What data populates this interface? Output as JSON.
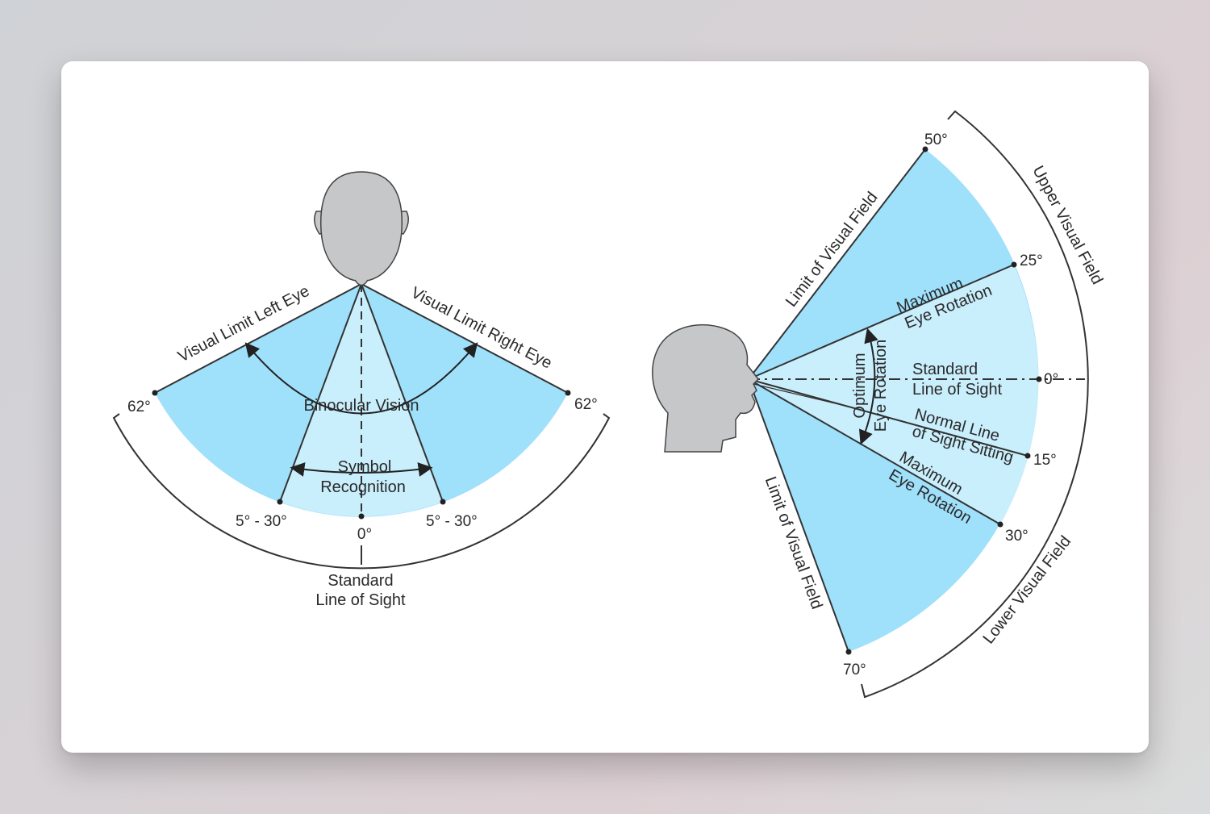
{
  "colors": {
    "field_blue": "#9fe0fb",
    "field_light": "#c9eefc",
    "head_gray": "#c6c7c9",
    "line": "#333333"
  },
  "top_view": {
    "visual_limit_left": "Visual Limit Left Eye",
    "visual_limit_right": "Visual Limit Right Eye",
    "binocular": "Binocular Vision",
    "symbol_1": "Symbol",
    "symbol_2": "Recognition",
    "angle_left": "62°",
    "angle_right": "62°",
    "range_left": "5° - 30°",
    "range_right": "5° - 30°",
    "zero": "0°",
    "sight_1": "Standard",
    "sight_2": "Line of Sight"
  },
  "side_view": {
    "limit_upper": "Limit of Visual Field",
    "limit_lower": "Limit of Visual Field",
    "upper_field": "Upper Visual Field",
    "lower_field": "Lower Visual Field",
    "max_rot_up_1": "Maximum",
    "max_rot_up_2": "Eye Rotation",
    "optimum_1": "Optimum",
    "optimum_2": "Eye Rotation",
    "standard_1": "Standard",
    "standard_2": "Line of Sight",
    "normal_1": "Normal Line",
    "normal_2": "of Sight Sitting",
    "max_rot_down_1": "Maximum",
    "max_rot_down_2": "Eye Rotation",
    "deg_50": "50°",
    "deg_25": "25°",
    "deg_0": "0°",
    "deg_15": "15°",
    "deg_30": "30°",
    "deg_70": "70°"
  }
}
